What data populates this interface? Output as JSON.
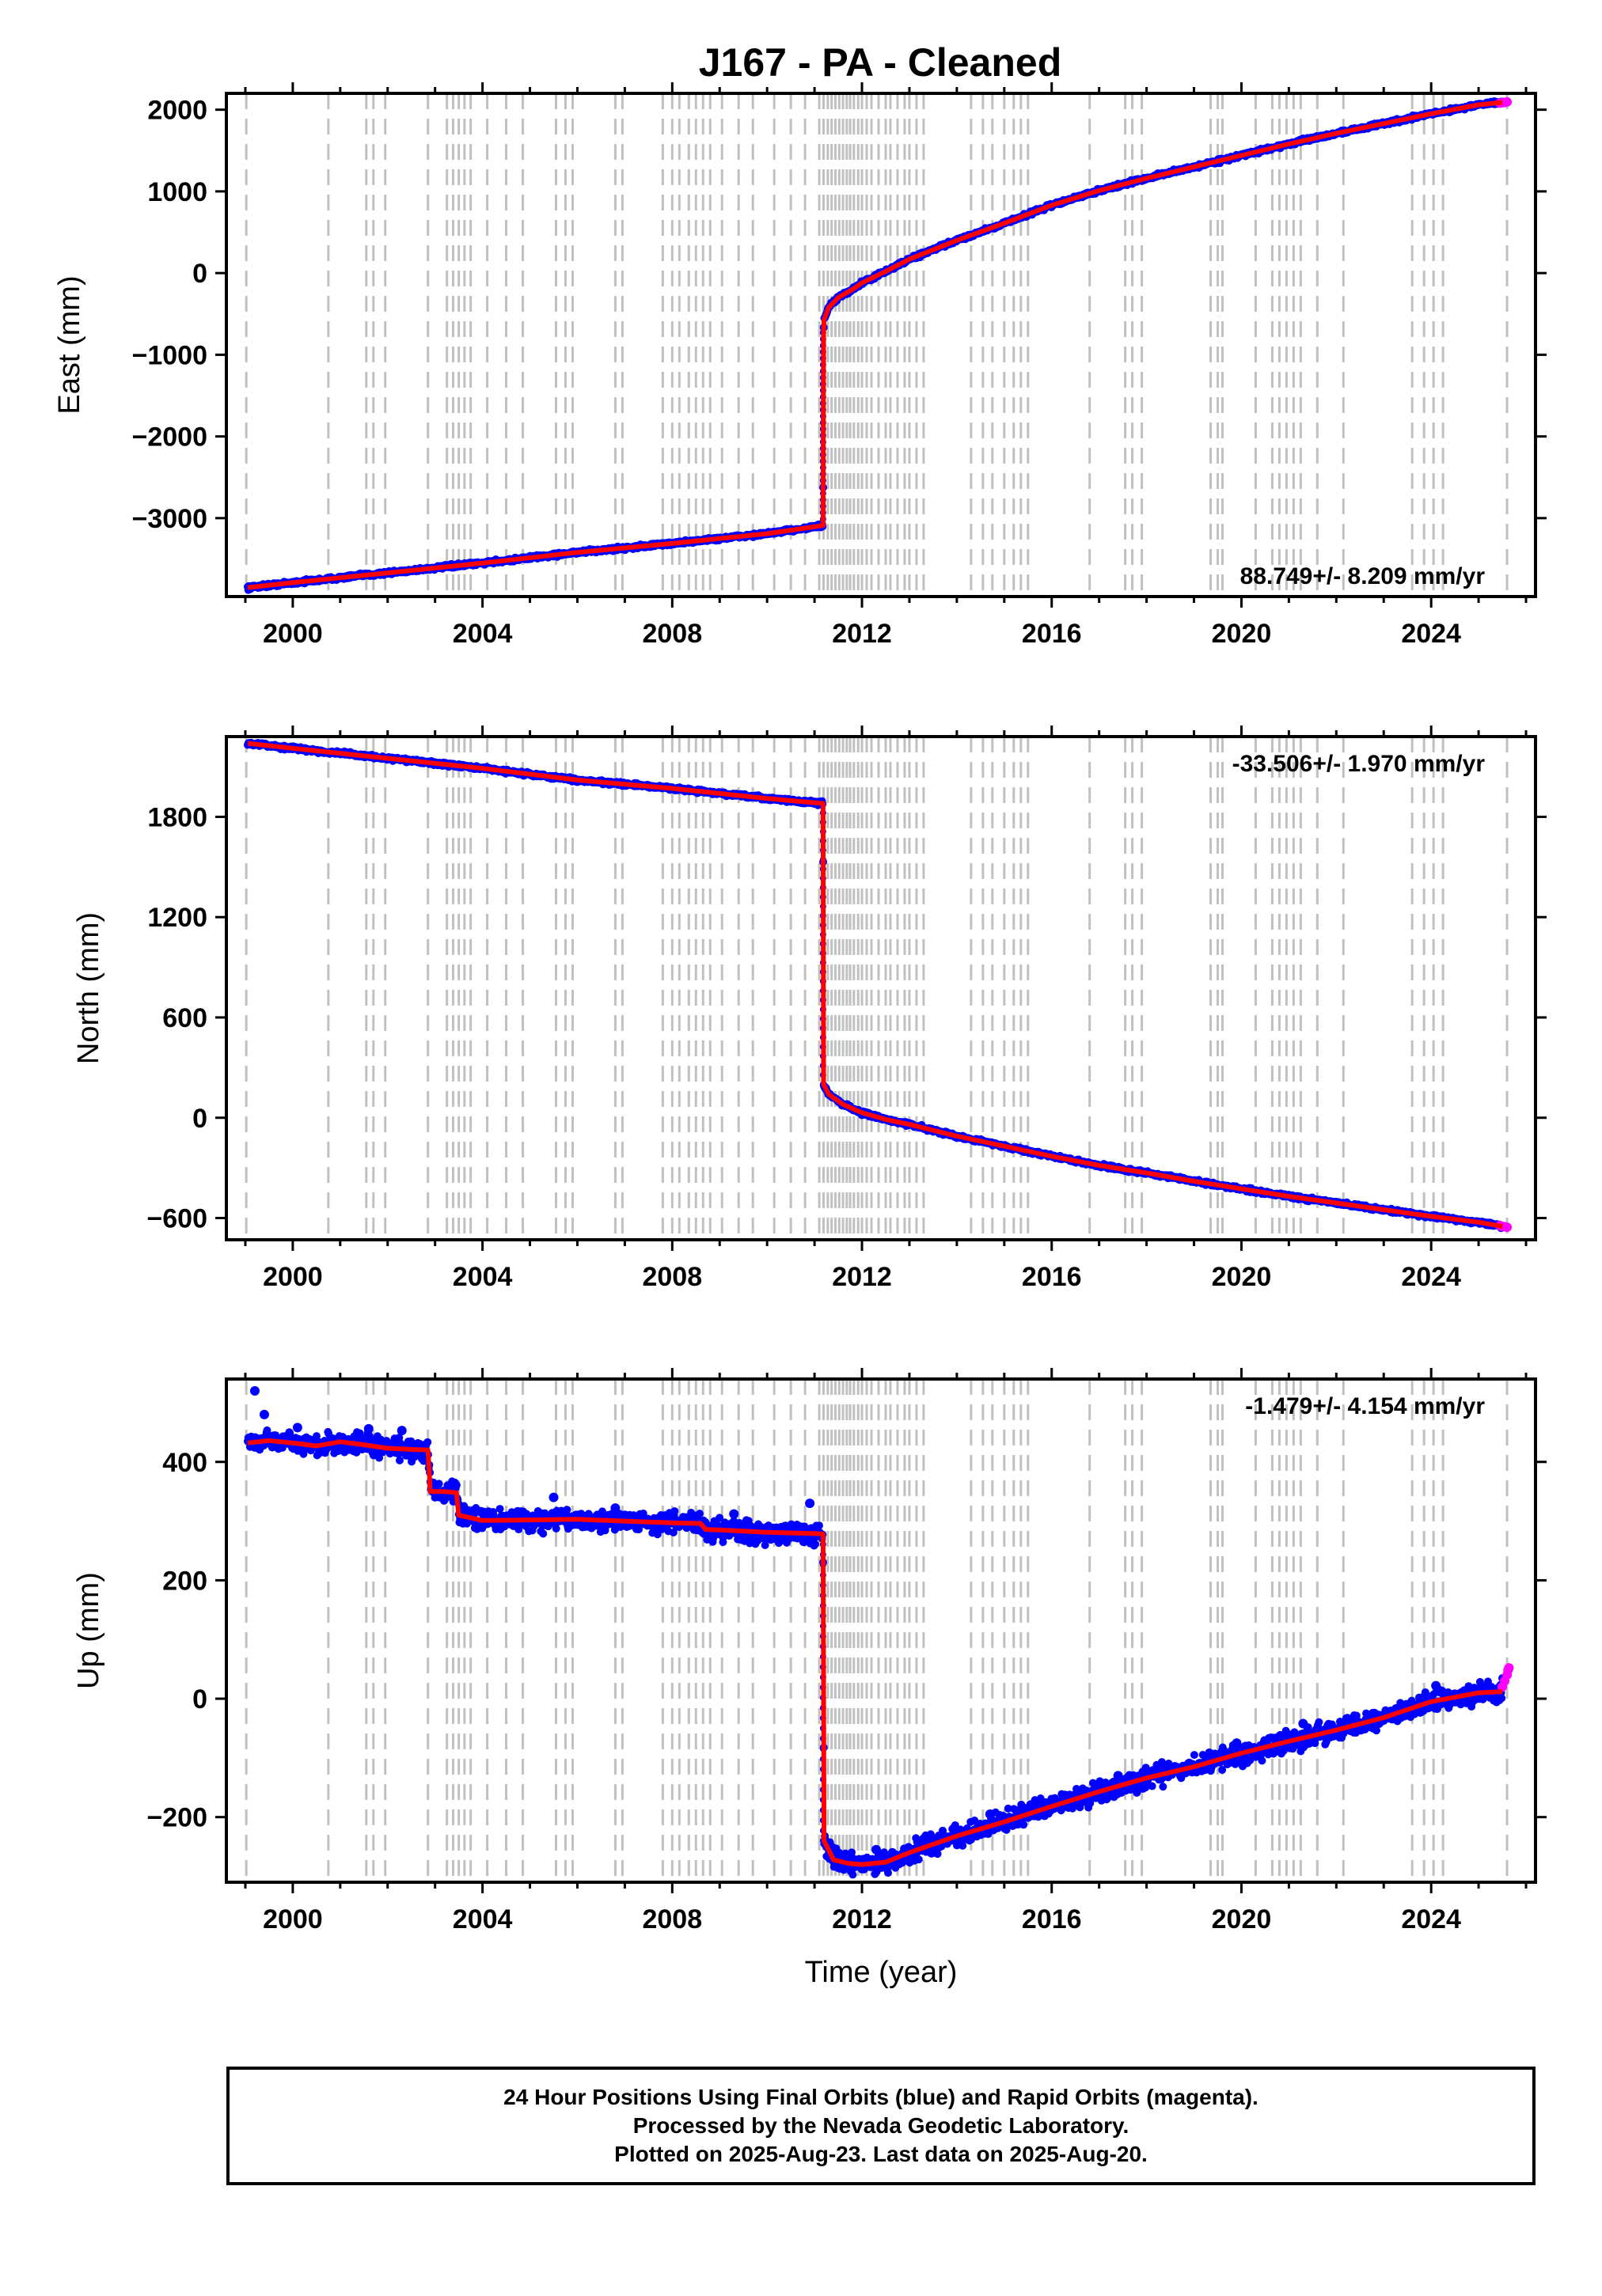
{
  "title": "J167  - PA - Cleaned",
  "colors": {
    "final_orbits": "#0000ff",
    "rapid_orbits": "#ff00ff",
    "model": "#ff0000",
    "steps": "#c0c0c0",
    "axis": "#000000"
  },
  "chart_data": [
    {
      "type": "scatter",
      "ylabel": "East (mm)",
      "xlabel": "",
      "xlim": [
        1998.6,
        2026.2
      ],
      "ylim": [
        -3960,
        2200
      ],
      "yticks": [
        -3000,
        -2000,
        -1000,
        0,
        1000,
        2000
      ],
      "xticks": [
        2000,
        2004,
        2008,
        2012,
        2016,
        2020,
        2024
      ],
      "rate_text": "88.749+/- 8.209 mm/yr",
      "rate_position": "bottom-right",
      "grid": false,
      "series": [
        {
          "style": "final",
          "x": [
            1999.05,
            2000,
            2002,
            2004,
            2006,
            2008,
            2010,
            2011.18,
            2011.19,
            2011.2,
            2011.3,
            2011.5,
            2011.8,
            2012,
            2012.5,
            2013,
            2014,
            2015,
            2016,
            2017,
            2018,
            2019,
            2020,
            2021,
            2022,
            2023,
            2024,
            2025,
            2025.5
          ],
          "y": [
            -3850,
            -3790,
            -3670,
            -3550,
            -3420,
            -3310,
            -3190,
            -3090,
            -730,
            -570,
            -420,
            -300,
            -200,
            -120,
            20,
            170,
            400,
            610,
            830,
            1010,
            1160,
            1300,
            1440,
            1580,
            1710,
            1830,
            1950,
            2060,
            2090
          ]
        },
        {
          "style": "rapid",
          "x": [
            2025.45,
            2025.5,
            2025.55,
            2025.6
          ],
          "y": [
            2080,
            2085,
            2090,
            2095
          ]
        }
      ]
    },
    {
      "type": "scatter",
      "ylabel": "North (mm)",
      "xlabel": "",
      "xlim": [
        1998.6,
        2026.2
      ],
      "ylim": [
        -730,
        2280
      ],
      "yticks": [
        -600,
        0,
        600,
        1200,
        1800
      ],
      "xticks": [
        2000,
        2004,
        2008,
        2012,
        2016,
        2020,
        2024
      ],
      "rate_text": "-33.506+/- 1.970 mm/yr",
      "rate_position": "top-right",
      "grid": false,
      "series": [
        {
          "style": "final",
          "x": [
            1999.05,
            2000,
            2002,
            2004,
            2006,
            2008,
            2010,
            2011.18,
            2011.19,
            2011.3,
            2011.6,
            2012,
            2012.5,
            2013,
            2014,
            2015,
            2016,
            2017,
            2018,
            2019,
            2020,
            2021,
            2022,
            2023,
            2024,
            2025,
            2025.5
          ],
          "y": [
            2240,
            2210,
            2150,
            2090,
            2020,
            1970,
            1910,
            1880,
            200,
            140,
            80,
            30,
            -10,
            -40,
            -110,
            -170,
            -230,
            -285,
            -330,
            -380,
            -425,
            -470,
            -510,
            -550,
            -590,
            -625,
            -650
          ]
        },
        {
          "style": "rapid",
          "x": [
            2025.45,
            2025.5,
            2025.55,
            2025.6
          ],
          "y": [
            -645,
            -650,
            -652,
            -655
          ]
        }
      ]
    },
    {
      "type": "scatter",
      "ylabel": "Up (mm)",
      "xlabel": "Time (year)",
      "xlim": [
        1998.6,
        2026.2
      ],
      "ylim": [
        -310,
        540
      ],
      "yticks": [
        -200,
        0,
        200,
        400
      ],
      "xticks": [
        2000,
        2004,
        2008,
        2012,
        2016,
        2020,
        2024
      ],
      "rate_text": "-1.479+/- 4.154 mm/yr",
      "rate_position": "top-right",
      "grid": false,
      "series": [
        {
          "style": "final",
          "x": [
            1999.05,
            1999.5,
            2000,
            2000.5,
            2001,
            2001.5,
            2002,
            2002.5,
            2002.85,
            2002.9,
            2003.2,
            2003.45,
            2003.5,
            2004,
            2005,
            2006,
            2007,
            2008,
            2008.6,
            2008.7,
            2009,
            2010,
            2011,
            2011.18,
            2011.2,
            2011.4,
            2011.7,
            2012,
            2012.5,
            2013,
            2014,
            2015,
            2016,
            2017,
            2018,
            2019,
            2020,
            2021,
            2022,
            2023,
            2024,
            2025,
            2025.5
          ],
          "y": [
            432,
            436,
            432,
            427,
            434,
            429,
            423,
            421,
            420,
            350,
            350,
            348,
            310,
            301,
            302,
            303,
            300,
            297,
            296,
            286,
            285,
            281,
            279,
            278,
            -240,
            -272,
            -278,
            -280,
            -276,
            -260,
            -232,
            -208,
            -182,
            -157,
            -134,
            -115,
            -92,
            -72,
            -53,
            -32,
            -5,
            10,
            12
          ]
        },
        {
          "style": "rapid",
          "x": [
            2025.5,
            2025.55,
            2025.6,
            2025.62,
            2025.64
          ],
          "y": [
            20,
            30,
            40,
            48,
            52
          ]
        }
      ],
      "outliers": {
        "x": [
          1999.2,
          1999.4,
          2000.1,
          2001.6,
          2002.3,
          2005.5,
          2006.8,
          2009.3,
          2010.9,
          2012.3,
          2014.7,
          2017.4,
          2019.9,
          2021.3,
          2022.8,
          2024.1
        ],
        "y": [
          520,
          480,
          458,
          456,
          453,
          340,
          322,
          312,
          330,
          -255,
          -195,
          -130,
          -75,
          -42,
          -25,
          22
        ]
      }
    }
  ],
  "step_lines": [
    1999.02,
    2000.75,
    2001.55,
    2001.7,
    2001.95,
    2002.85,
    2003.25,
    2003.38,
    2003.5,
    2003.62,
    2003.75,
    2004.1,
    2004.5,
    2004.85,
    2005.55,
    2005.75,
    2005.9,
    2006.8,
    2006.95,
    2007.8,
    2008.0,
    2008.15,
    2008.35,
    2008.5,
    2008.65,
    2008.8,
    2009.05,
    2009.4,
    2009.7,
    2010.15,
    2010.5,
    2010.8,
    2011.1,
    2011.19,
    2011.28,
    2011.36,
    2011.44,
    2011.52,
    2011.6,
    2011.68,
    2011.75,
    2011.83,
    2011.92,
    2012.0,
    2012.1,
    2012.2,
    2012.35,
    2012.5,
    2012.6,
    2012.75,
    2012.9,
    2013.0,
    2013.15,
    2013.3,
    2014.3,
    2014.55,
    2014.75,
    2015.0,
    2015.2,
    2015.35,
    2015.5,
    2016.8,
    2017.55,
    2017.7,
    2017.9,
    2019.35,
    2019.5,
    2019.6,
    2020.3,
    2020.65,
    2020.8,
    2020.95,
    2021.1,
    2021.25,
    2021.6,
    2022.15,
    2023.6,
    2023.85,
    2024.05,
    2024.25,
    2025.6
  ],
  "footer": {
    "line1": "24 Hour Positions Using Final Orbits (blue) and Rapid Orbits (magenta).",
    "line2": "Processed by the Nevada Geodetic Laboratory.",
    "line3": "Plotted on 2025-Aug-23. Last data on 2025-Aug-20."
  }
}
